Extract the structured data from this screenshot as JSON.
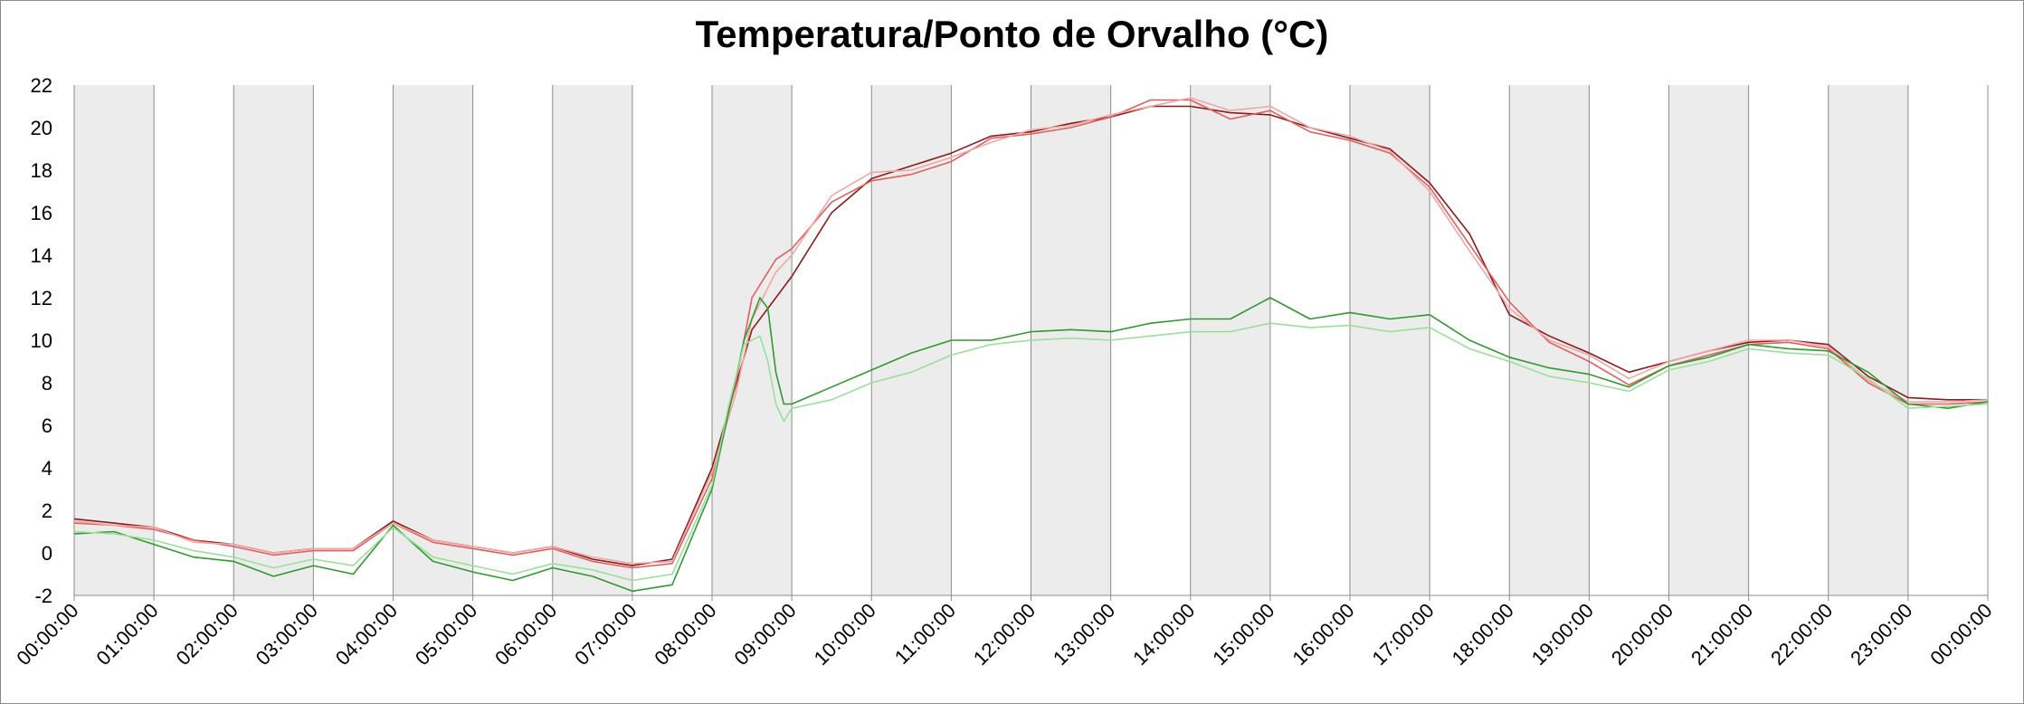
{
  "chart_data": {
    "type": "line",
    "title": "Temperatura/Ponto de Orvalho (°C)",
    "xlabel": "",
    "ylabel": "",
    "ylim": [
      -2,
      22
    ],
    "yticks": [
      -2,
      0,
      2,
      4,
      6,
      8,
      10,
      12,
      14,
      16,
      18,
      20,
      22
    ],
    "xlim_hours": [
      0,
      24
    ],
    "x_tick_labels": [
      "00:00:00",
      "01:00:00",
      "02:00:00",
      "03:00:00",
      "04:00:00",
      "05:00:00",
      "06:00:00",
      "07:00:00",
      "08:00:00",
      "09:00:00",
      "10:00:00",
      "11:00:00",
      "12:00:00",
      "13:00:00",
      "14:00:00",
      "15:00:00",
      "16:00:00",
      "17:00:00",
      "18:00:00",
      "19:00:00",
      "20:00:00",
      "21:00:00",
      "22:00:00",
      "23:00:00",
      "00:00:00"
    ],
    "grid": "vertical hourly lines, alternating grey hour bands",
    "legend": "none",
    "colors": {
      "band": "#ececec",
      "gridline": "#8c8c8c",
      "temp_dark": "#8b1a1a",
      "temp_red": "#e06060",
      "temp_light": "#f2a6a6",
      "dew_dark": "#2f9a2f",
      "dew_light": "#9adf9a"
    },
    "series": [
      {
        "color_key": "temp_dark",
        "x": [
          0,
          0.5,
          1,
          1.5,
          2,
          2.5,
          3,
          3.5,
          4,
          4.5,
          5,
          5.5,
          6,
          6.5,
          7,
          7.5,
          8,
          8.5,
          9,
          9.5,
          10,
          10.5,
          11,
          11.5,
          12,
          12.5,
          13,
          13.5,
          14,
          14.5,
          15,
          15.5,
          16,
          16.5,
          17,
          17.5,
          18,
          18.5,
          19,
          19.5,
          20,
          20.5,
          21,
          21.5,
          22,
          22.5,
          23,
          23.5,
          24
        ],
        "y": [
          1.6,
          1.4,
          1.2,
          0.6,
          0.4,
          0.0,
          0.2,
          0.2,
          1.5,
          0.6,
          0.3,
          0.0,
          0.3,
          -0.3,
          -0.6,
          -0.3,
          4.0,
          10.5,
          13.0,
          16.0,
          17.6,
          18.2,
          18.8,
          19.6,
          19.8,
          20.2,
          20.5,
          21.0,
          21.0,
          20.7,
          20.6,
          20.0,
          19.5,
          19.0,
          17.4,
          15.0,
          11.2,
          10.2,
          9.4,
          8.5,
          9.0,
          9.5,
          9.9,
          10.0,
          9.8,
          8.3,
          7.3,
          7.2,
          7.2
        ]
      },
      {
        "color_key": "temp_red",
        "x": [
          0,
          0.5,
          1,
          1.5,
          2,
          2.5,
          3,
          3.5,
          4,
          4.5,
          5,
          5.5,
          6,
          6.5,
          7,
          7.5,
          8,
          8.3,
          8.5,
          8.8,
          9,
          9.5,
          10,
          10.5,
          11,
          11.5,
          12,
          12.5,
          13,
          13.5,
          14,
          14.5,
          15,
          15.5,
          16,
          16.5,
          17,
          17.5,
          18,
          18.5,
          19,
          19.5,
          20,
          20.5,
          21,
          21.5,
          22,
          22.5,
          23,
          23.5,
          24
        ],
        "y": [
          1.4,
          1.3,
          1.1,
          0.6,
          0.3,
          -0.1,
          0.1,
          0.1,
          1.4,
          0.5,
          0.2,
          -0.1,
          0.2,
          -0.4,
          -0.7,
          -0.5,
          3.5,
          8.0,
          12.0,
          13.8,
          14.3,
          16.5,
          17.5,
          17.8,
          18.4,
          19.5,
          19.7,
          20.0,
          20.5,
          21.3,
          21.3,
          20.4,
          20.8,
          19.8,
          19.4,
          18.8,
          17.2,
          14.5,
          11.8,
          9.9,
          9.0,
          7.9,
          8.8,
          9.3,
          9.8,
          9.9,
          9.6,
          8.0,
          7.0,
          7.0,
          7.1
        ]
      },
      {
        "color_key": "temp_light",
        "x": [
          0,
          0.5,
          1,
          1.5,
          2,
          2.5,
          3,
          3.5,
          4,
          4.5,
          5,
          5.5,
          6,
          6.5,
          7,
          7.5,
          8,
          8.3,
          8.5,
          8.8,
          9,
          9.5,
          10,
          10.5,
          11,
          11.5,
          12,
          12.5,
          13,
          13.5,
          14,
          14.5,
          15,
          15.5,
          16,
          16.5,
          17,
          17.5,
          18,
          18.5,
          19,
          19.5,
          20,
          20.5,
          21,
          21.5,
          22,
          22.5,
          23,
          23.5,
          24
        ],
        "y": [
          1.5,
          1.3,
          1.2,
          0.5,
          0.4,
          0.0,
          0.2,
          0.2,
          1.4,
          0.6,
          0.3,
          0.0,
          0.3,
          -0.2,
          -0.5,
          -0.4,
          3.8,
          7.5,
          11.0,
          13.2,
          14.0,
          16.8,
          17.9,
          18.0,
          18.6,
          19.3,
          19.9,
          20.1,
          20.6,
          21.0,
          21.4,
          20.8,
          21.0,
          20.0,
          19.6,
          18.9,
          17.0,
          14.2,
          11.5,
          10.0,
          9.3,
          8.2,
          9.0,
          9.5,
          10.0,
          10.0,
          9.7,
          8.1,
          7.1,
          7.1,
          7.2
        ]
      },
      {
        "color_key": "dew_dark",
        "x": [
          0,
          0.5,
          1,
          1.5,
          2,
          2.5,
          3,
          3.5,
          4,
          4.5,
          5,
          5.5,
          6,
          6.5,
          7,
          7.5,
          8,
          8.2,
          8.4,
          8.6,
          8.7,
          8.8,
          8.9,
          9,
          9.5,
          10,
          10.5,
          11,
          11.5,
          12,
          12.5,
          13,
          13.5,
          14,
          14.5,
          15,
          15.5,
          16,
          16.5,
          17,
          17.5,
          18,
          18.5,
          19,
          19.5,
          20,
          20.5,
          21,
          21.5,
          22,
          22.5,
          23,
          23.5,
          24
        ],
        "y": [
          0.9,
          1.0,
          0.4,
          -0.2,
          -0.4,
          -1.1,
          -0.6,
          -1.0,
          1.3,
          -0.4,
          -0.9,
          -1.3,
          -0.7,
          -1.1,
          -1.8,
          -1.5,
          3.0,
          6.5,
          10.0,
          12.0,
          11.5,
          8.5,
          7.0,
          7.0,
          7.8,
          8.6,
          9.4,
          10.0,
          10.0,
          10.4,
          10.5,
          10.4,
          10.8,
          11.0,
          11.0,
          12.0,
          11.0,
          11.3,
          11.0,
          11.2,
          10.0,
          9.2,
          8.7,
          8.4,
          7.8,
          8.8,
          9.2,
          9.8,
          9.6,
          9.5,
          8.5,
          7.0,
          6.8,
          7.1
        ]
      },
      {
        "color_key": "dew_light",
        "x": [
          0,
          0.5,
          1,
          1.5,
          2,
          2.5,
          3,
          3.5,
          4,
          4.5,
          5,
          5.5,
          6,
          6.5,
          7,
          7.5,
          8,
          8.2,
          8.4,
          8.6,
          8.7,
          8.8,
          8.9,
          9,
          9.5,
          10,
          10.5,
          11,
          11.5,
          12,
          12.5,
          13,
          13.5,
          14,
          14.5,
          15,
          15.5,
          16,
          16.5,
          17,
          17.5,
          18,
          18.5,
          19,
          19.5,
          20,
          20.5,
          21,
          21.5,
          22,
          22.5,
          23,
          23.5,
          24
        ],
        "y": [
          1.0,
          0.9,
          0.6,
          0.1,
          -0.2,
          -0.7,
          -0.3,
          -0.6,
          1.2,
          -0.2,
          -0.6,
          -1.0,
          -0.5,
          -0.8,
          -1.3,
          -1.0,
          3.2,
          6.8,
          9.8,
          10.2,
          9.0,
          7.0,
          6.2,
          6.8,
          7.2,
          8.0,
          8.5,
          9.3,
          9.8,
          10.0,
          10.1,
          10.0,
          10.2,
          10.4,
          10.4,
          10.8,
          10.6,
          10.7,
          10.4,
          10.6,
          9.6,
          9.0,
          8.3,
          8.0,
          7.6,
          8.6,
          9.0,
          9.6,
          9.4,
          9.3,
          8.2,
          6.8,
          6.9,
          7.0
        ]
      }
    ]
  }
}
